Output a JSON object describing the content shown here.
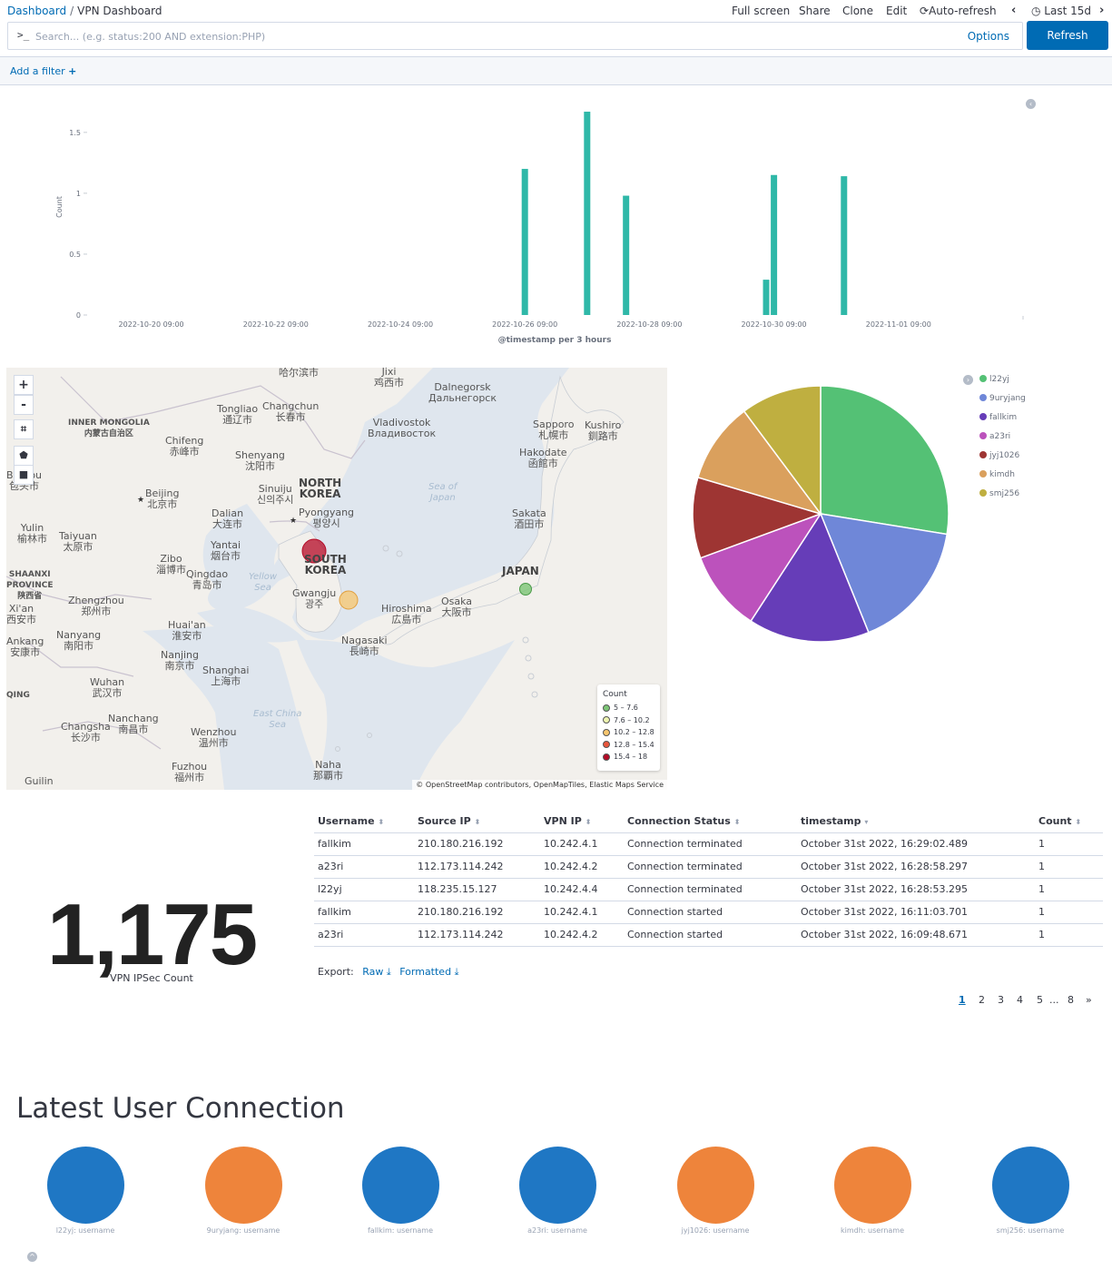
{
  "breadcrumb": {
    "root": "Dashboard",
    "current": "VPN Dashboard"
  },
  "top_menu": {
    "full_screen": "Full screen",
    "share": "Share",
    "clone": "Clone",
    "edit": "Edit",
    "auto_refresh": "Auto-refresh",
    "time_range": "Last 15d"
  },
  "search": {
    "prompt": ">_",
    "placeholder": "Search... (e.g. status:200 AND extension:PHP)",
    "options_label": "Options",
    "refresh_label": "Refresh"
  },
  "filter": {
    "add_label": "Add a filter"
  },
  "histogram": {
    "chart_data": {
      "type": "bar",
      "ylabel": "Count",
      "xlabel": "@timestamp per 3 hours",
      "ylim": [
        0,
        1.7
      ],
      "y_ticks": [
        "0",
        "0.5",
        "1",
        "1.5"
      ],
      "x_ticks": [
        "2022-10-20 09:00",
        "2022-10-22 09:00",
        "2022-10-24 09:00",
        "2022-10-26 09:00",
        "2022-10-28 09:00",
        "2022-10-30 09:00",
        "2022-11-01 09:00"
      ],
      "bars": [
        {
          "x": "2022-10-26 09:00",
          "value": 1.2
        },
        {
          "x": "2022-10-27 09:00",
          "value": 1.67
        },
        {
          "x": "2022-10-28 00:00",
          "value": 0.98
        },
        {
          "x": "2022-10-30 06:00",
          "value": 0.29
        },
        {
          "x": "2022-10-30 09:00",
          "value": 1.15
        },
        {
          "x": "2022-10-31 12:00",
          "value": 1.14
        }
      ],
      "color": "#2fb8a8"
    }
  },
  "map": {
    "controls": {
      "zoom_in": "+",
      "zoom_out": "-"
    },
    "labels": [
      {
        "text": "哈尔滨市",
        "kind": "city"
      },
      {
        "text": "Jixi\n鸡西市",
        "kind": "city"
      },
      {
        "text": "Dalnegorsk\nДальнегорск",
        "kind": "city"
      },
      {
        "text": "INNER MONGOLIA\n内蒙古自治区",
        "kind": "region"
      },
      {
        "text": "Tongliao\n通辽市",
        "kind": "city"
      },
      {
        "text": "Changchun\n长春市",
        "kind": "city"
      },
      {
        "text": "Vladivostok\nВладивосток",
        "kind": "city"
      },
      {
        "text": "Sapporo\n札幌市",
        "kind": "city"
      },
      {
        "text": "Kushiro\n釧路市",
        "kind": "city"
      },
      {
        "text": "Chifeng\n赤峰市",
        "kind": "city"
      },
      {
        "text": "Shenyang\n沈阳市",
        "kind": "city"
      },
      {
        "text": "Hakodate\n函館市",
        "kind": "city"
      },
      {
        "text": "Baotou\n包头市",
        "kind": "city"
      },
      {
        "text": "NORTH\nKOREA",
        "kind": "country"
      },
      {
        "text": "Beijing\n北京市",
        "kind": "city"
      },
      {
        "text": "Sinuiju\n신의주시",
        "kind": "city"
      },
      {
        "text": "Sea of\nJapan",
        "kind": "sea"
      },
      {
        "text": "Dalian\n大连市",
        "kind": "city"
      },
      {
        "text": "Pyongyang\n평양시",
        "kind": "city"
      },
      {
        "text": "Sakata\n酒田市",
        "kind": "city"
      },
      {
        "text": "Yulin\n榆林市",
        "kind": "city"
      },
      {
        "text": "Taiyuan\n太原市",
        "kind": "city"
      },
      {
        "text": "Yantai\n烟台市",
        "kind": "city"
      },
      {
        "text": "SOUTH\nKOREA",
        "kind": "country"
      },
      {
        "text": "Zibo\n淄博市",
        "kind": "city"
      },
      {
        "text": "Qingdao\n青岛市",
        "kind": "city"
      },
      {
        "text": "Yellow\nSea",
        "kind": "sea"
      },
      {
        "text": "JAPAN",
        "kind": "country"
      },
      {
        "text": "SHAANXI\nPROVINCE\n陕西省",
        "kind": "region"
      },
      {
        "text": "Gwangju\n광주",
        "kind": "city"
      },
      {
        "text": "Xi'an\n西安市",
        "kind": "city"
      },
      {
        "text": "Zhengzhou\n郑州市",
        "kind": "city"
      },
      {
        "text": "Hiroshima\n広島市",
        "kind": "city"
      },
      {
        "text": "Osaka\n大阪市",
        "kind": "city"
      },
      {
        "text": "Huai'an\n淮安市",
        "kind": "city"
      },
      {
        "text": "Ankang\n安康市",
        "kind": "city"
      },
      {
        "text": "Nanyang\n南阳市",
        "kind": "city"
      },
      {
        "text": "Nagasaki\n長崎市",
        "kind": "city"
      },
      {
        "text": "Nanjing\n南京市",
        "kind": "city"
      },
      {
        "text": "Shanghai\n上海市",
        "kind": "city"
      },
      {
        "text": "Wuhan\n武汉市",
        "kind": "city"
      },
      {
        "text": "QING",
        "kind": "region"
      },
      {
        "text": "East China\nSea",
        "kind": "sea"
      },
      {
        "text": "Nanchang\n南昌市",
        "kind": "city"
      },
      {
        "text": "Changsha\n长沙市",
        "kind": "city"
      },
      {
        "text": "Wenzhou\n温州市",
        "kind": "city"
      },
      {
        "text": "Naha\n那覇市",
        "kind": "city"
      },
      {
        "text": "Fuzhou\n福州市",
        "kind": "city"
      },
      {
        "text": "Guilin",
        "kind": "city"
      }
    ],
    "legend": {
      "title": "Count",
      "ranges": [
        {
          "label": "5 – 7.6",
          "color": "#7cc576"
        },
        {
          "label": "7.6 – 10.2",
          "color": "#eef4b0"
        },
        {
          "label": "10.2 – 12.8",
          "color": "#f7c66e"
        },
        {
          "label": "12.8 – 15.4",
          "color": "#e8553b"
        },
        {
          "label": "15.4 – 18",
          "color": "#b40a26"
        }
      ]
    },
    "points": [
      {
        "location": "Seoul",
        "count": 17,
        "color": "#b40a26"
      },
      {
        "location": "Gwangju",
        "count": 11,
        "color": "#f7c66e"
      },
      {
        "location": "Tokyo",
        "count": 6,
        "color": "#7cc576"
      }
    ],
    "attribution": "© OpenStreetMap contributors, OpenMapTiles, Elastic Maps Service"
  },
  "pie": {
    "chart_data": {
      "type": "pie",
      "slices": [
        {
          "label": "l22yj",
          "value": 27,
          "color": "#54c175"
        },
        {
          "label": "9uryjang",
          "value": 16,
          "color": "#6f87d8"
        },
        {
          "label": "fallkim",
          "value": 15,
          "color": "#663db8"
        },
        {
          "label": "a23ri",
          "value": 10,
          "color": "#bc52bc"
        },
        {
          "label": "jyj1026",
          "value": 10,
          "color": "#9e3533"
        },
        {
          "label": "kimdh",
          "value": 10,
          "color": "#daa05d"
        },
        {
          "label": "smj256",
          "value": 10,
          "color": "#bfaf40"
        }
      ]
    }
  },
  "metric": {
    "value": "1,175",
    "label": "VPN IPSec Count"
  },
  "table": {
    "headers": [
      "Username",
      "Source IP",
      "VPN IP",
      "Connection Status",
      "timestamp",
      "Count"
    ],
    "rows": [
      [
        "fallkim",
        "210.180.216.192",
        "10.242.4.1",
        "Connection terminated",
        "October 31st 2022, 16:29:02.489",
        "1"
      ],
      [
        "a23ri",
        "112.173.114.242",
        "10.242.4.2",
        "Connection terminated",
        "October 31st 2022, 16:28:58.297",
        "1"
      ],
      [
        "l22yj",
        "118.235.15.127",
        "10.242.4.4",
        "Connection terminated",
        "October 31st 2022, 16:28:53.295",
        "1"
      ],
      [
        "fallkim",
        "210.180.216.192",
        "10.242.4.1",
        "Connection started",
        "October 31st 2022, 16:11:03.701",
        "1"
      ],
      [
        "a23ri",
        "112.173.114.242",
        "10.242.4.2",
        "Connection started",
        "October 31st 2022, 16:09:48.671",
        "1"
      ]
    ],
    "export": {
      "label": "Export:",
      "raw": "Raw",
      "formatted": "Formatted"
    },
    "pagination": [
      "1",
      "2",
      "3",
      "4",
      "5",
      "...",
      "8",
      "»"
    ]
  },
  "latest": {
    "title": "Latest User Connection",
    "users": [
      {
        "label": "l22yj: username",
        "color": "#1f77c4"
      },
      {
        "label": "9uryjang: username",
        "color": "#ee843b"
      },
      {
        "label": "fallkim: username",
        "color": "#1f77c4"
      },
      {
        "label": "a23ri: username",
        "color": "#1f77c4"
      },
      {
        "label": "jyj1026: username",
        "color": "#ee843b"
      },
      {
        "label": "kimdh: username",
        "color": "#ee843b"
      },
      {
        "label": "smj256: username",
        "color": "#1f77c4"
      }
    ]
  }
}
